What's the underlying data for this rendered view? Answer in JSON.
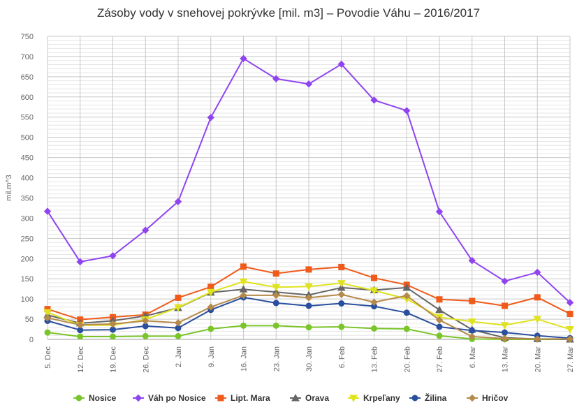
{
  "chart_data": {
    "type": "line",
    "title": "Zásoby vody v snehovej pokrývke [mil. m3] – Povodie Váhu – 2016/2017",
    "ylabel": "mil.m^3",
    "xlabel": "",
    "ylim": [
      0,
      750
    ],
    "y_ticks": [
      0,
      50,
      100,
      150,
      200,
      250,
      300,
      350,
      400,
      450,
      500,
      550,
      600,
      650,
      700,
      750
    ],
    "grid": true,
    "legend_position": "bottom",
    "x": [
      "5. Dec",
      "12. Dec",
      "19. Dec",
      "26. Dec",
      "2. Jan",
      "9. Jan",
      "16. Jan",
      "23. Jan",
      "30. Jan",
      "6. Feb",
      "13. Feb",
      "20. Feb",
      "27. Feb",
      "6. Mar",
      "13. Mar",
      "20. Mar",
      "27. Mar"
    ],
    "series": [
      {
        "name": "Nosice",
        "color": "#7ac52a",
        "marker": "circle",
        "values": [
          17,
          7,
          7,
          8,
          8,
          26,
          34,
          34,
          30,
          31,
          27,
          26,
          9,
          1,
          0,
          0,
          0
        ]
      },
      {
        "name": "Váh po Nosice",
        "color": "#8f44f0",
        "marker": "diamond",
        "values": [
          317,
          192,
          207,
          270,
          341,
          549,
          695,
          645,
          632,
          681,
          592,
          566,
          316,
          195,
          144,
          166,
          91
        ]
      },
      {
        "name": "Lipt. Mara",
        "color": "#f05a1a",
        "marker": "square",
        "values": [
          75,
          49,
          55,
          61,
          103,
          130,
          180,
          163,
          173,
          179,
          152,
          135,
          99,
          95,
          83,
          104,
          63
        ]
      },
      {
        "name": "Orava",
        "color": "#666666",
        "marker": "triangle",
        "values": [
          60,
          40,
          46,
          58,
          78,
          116,
          124,
          117,
          110,
          128,
          122,
          128,
          73,
          24,
          4,
          1,
          0
        ]
      },
      {
        "name": "Krpeľany",
        "color": "#dfe31e",
        "marker": "triangle-down",
        "values": [
          67,
          35,
          35,
          49,
          79,
          117,
          143,
          129,
          131,
          139,
          121,
          100,
          55,
          44,
          35,
          50,
          25
        ]
      },
      {
        "name": "Žilina",
        "color": "#2a4f9e",
        "marker": "circle",
        "values": [
          46,
          23,
          24,
          33,
          28,
          73,
          104,
          90,
          83,
          89,
          82,
          66,
          31,
          22,
          17,
          9,
          3
        ]
      },
      {
        "name": "Hričov",
        "color": "#b58a4a",
        "marker": "diamond",
        "values": [
          53,
          36,
          38,
          46,
          41,
          80,
          109,
          109,
          103,
          111,
          92,
          108,
          48,
          7,
          2,
          1,
          1
        ]
      }
    ]
  }
}
